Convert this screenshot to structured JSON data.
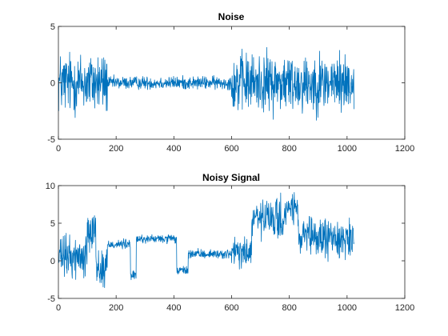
{
  "chart_data": [
    {
      "type": "line",
      "title": "Noise",
      "xlim": [
        0,
        1200
      ],
      "ylim": [
        -5,
        5
      ],
      "xticks": [
        0,
        200,
        400,
        600,
        800,
        1000,
        1200
      ],
      "yticks": [
        -5,
        0,
        5
      ],
      "grid": false,
      "color": "#0072BD",
      "n": 1024,
      "segments": [
        {
          "x_start": 0,
          "x_end": 170,
          "mean": 0.0,
          "amplitude": 1.7
        },
        {
          "x_start": 170,
          "x_end": 600,
          "mean": 0.0,
          "amplitude": 0.35
        },
        {
          "x_start": 600,
          "x_end": 1024,
          "mean": 0.0,
          "amplitude": 1.6
        }
      ],
      "y_min_observed": -5,
      "y_max_observed": 5.3
    },
    {
      "type": "line",
      "title": "Noisy Signal",
      "xlim": [
        0,
        1200
      ],
      "ylim": [
        -5,
        10
      ],
      "xticks": [
        0,
        200,
        400,
        600,
        800,
        1000,
        1200
      ],
      "yticks": [
        -5,
        0,
        5,
        10
      ],
      "grid": false,
      "color": "#0072BD",
      "n": 1024,
      "segments": [
        {
          "x_start": 0,
          "x_end": 100,
          "mean": 0.5,
          "amplitude": 1.7
        },
        {
          "x_start": 100,
          "x_end": 130,
          "mean": 4.5,
          "amplitude": 1.6
        },
        {
          "x_start": 130,
          "x_end": 170,
          "mean": -1.0,
          "amplitude": 1.7
        },
        {
          "x_start": 170,
          "x_end": 250,
          "mean": 2.2,
          "amplitude": 0.4
        },
        {
          "x_start": 250,
          "x_end": 270,
          "mean": -2.0,
          "amplitude": 0.4
        },
        {
          "x_start": 270,
          "x_end": 410,
          "mean": 2.9,
          "amplitude": 0.35
        },
        {
          "x_start": 410,
          "x_end": 450,
          "mean": -1.3,
          "amplitude": 0.35
        },
        {
          "x_start": 450,
          "x_end": 600,
          "mean": 0.9,
          "amplitude": 0.35
        },
        {
          "x_start": 600,
          "x_end": 670,
          "mean": 1.0,
          "amplitude": 1.4
        },
        {
          "x_start": 670,
          "x_end": 790,
          "mean": 5.5,
          "amplitude": 1.6
        },
        {
          "x_start": 790,
          "x_end": 830,
          "mean": 7.0,
          "amplitude": 1.2
        },
        {
          "x_start": 830,
          "x_end": 1024,
          "mean": 3.0,
          "amplitude": 1.6
        }
      ],
      "y_min_observed": -4.3,
      "y_max_observed": 10.2
    }
  ]
}
